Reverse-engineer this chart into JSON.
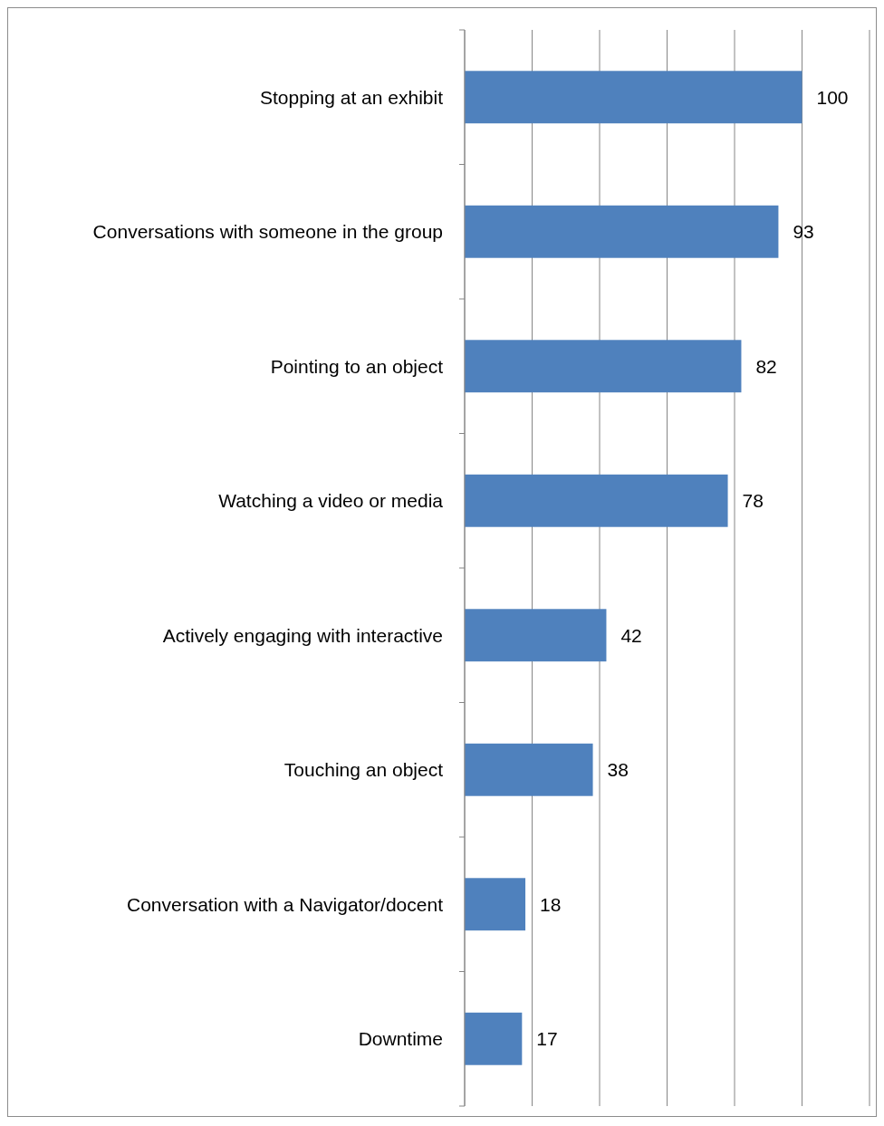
{
  "chart_data": {
    "type": "bar",
    "orientation": "horizontal",
    "categories": [
      "Stopping at an exhibit",
      "Conversations with someone in the group",
      "Pointing to an object",
      "Watching a video or media",
      "Actively engaging with interactive",
      "Touching an object",
      "Conversation with a Navigator/docent",
      "Downtime"
    ],
    "values": [
      100,
      93,
      82,
      78,
      42,
      38,
      18,
      17
    ],
    "color": "#4f81bd",
    "xlim": [
      0,
      120
    ],
    "xticks": [
      {
        "value": 0,
        "label": null
      },
      {
        "value": 20,
        "label": null
      },
      {
        "value": 40,
        "label": null
      },
      {
        "value": 60,
        "label": null
      },
      {
        "value": 80,
        "label": null
      },
      {
        "value": 100,
        "label": null
      },
      {
        "value": 120,
        "label": null
      }
    ],
    "grid": "x",
    "tick_labels": "y",
    "data_labels": true
  }
}
